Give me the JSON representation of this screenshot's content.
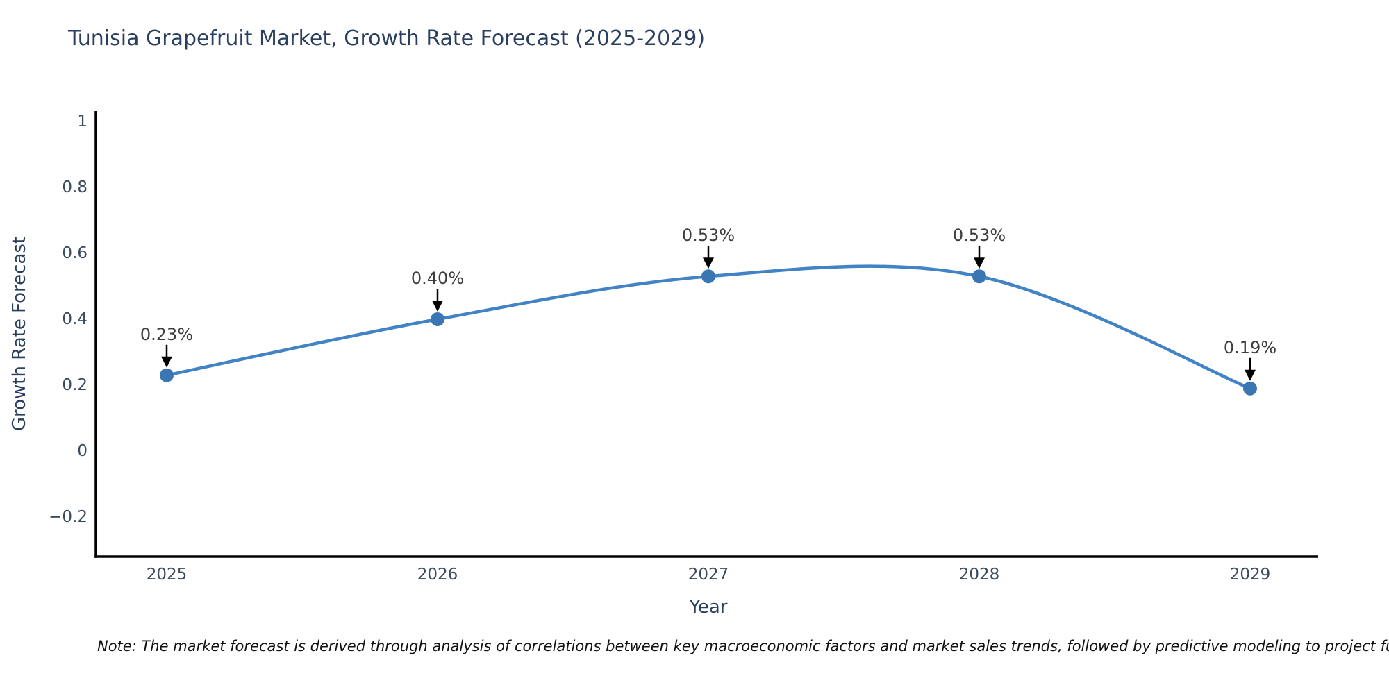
{
  "title": "Tunisia Grapefruit Market, Growth Rate Forecast (2025-2029)",
  "note": "Note: The market forecast is derived through analysis of correlations between key macroeconomic factors and market sales trends, followed by predictive modeling to project future sa",
  "chart_data": {
    "type": "line",
    "title": "Tunisia Grapefruit Market, Growth Rate Forecast (2025-2029)",
    "xlabel": "Year",
    "ylabel": "Growth Rate Forecast",
    "categories": [
      "2025",
      "2026",
      "2027",
      "2028",
      "2029"
    ],
    "values": [
      0.23,
      0.4,
      0.53,
      0.53,
      0.19
    ],
    "point_labels": [
      "0.23%",
      "0.40%",
      "0.53%",
      "0.53%",
      "0.19%"
    ],
    "yticks": [
      {
        "v": 1.0,
        "label": "1"
      },
      {
        "v": 0.8,
        "label": "0.8"
      },
      {
        "v": 0.6,
        "label": "0.6"
      },
      {
        "v": 0.4,
        "label": "0.4"
      },
      {
        "v": 0.2,
        "label": "0.2"
      },
      {
        "v": 0.0,
        "label": "0"
      },
      {
        "v": -0.2,
        "label": "−0.2"
      }
    ],
    "ylim": [
      -0.32,
      1.03
    ],
    "line_shape": "spline",
    "grid": false,
    "legend": "none",
    "colors": {
      "line": "#4183c4",
      "marker": "#3a76b4",
      "axis": "#000000",
      "arrow": "#000000",
      "title_text": "#2a3f5f",
      "tick_text": "#3b4a5e",
      "annotation_text": "#3d3d3d"
    }
  }
}
